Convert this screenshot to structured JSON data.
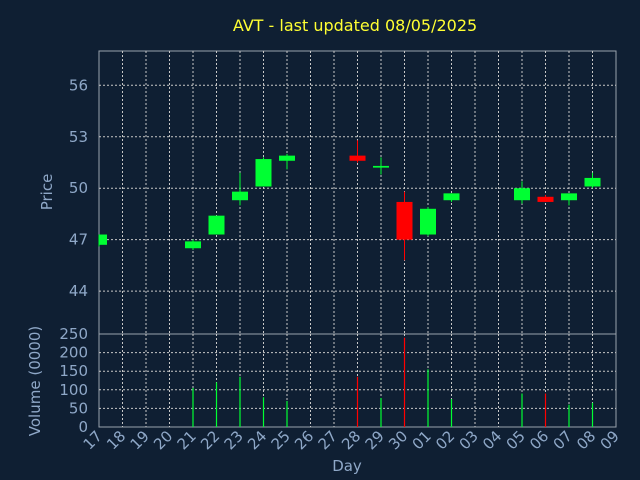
{
  "chart_data": [
    {
      "type": "candlestick",
      "title": "AVT - last updated 08/05/2025",
      "ylabel": "Price",
      "ylim": [
        41.5,
        58
      ],
      "yticks": [
        44,
        47,
        50,
        53,
        56
      ],
      "colors": {
        "up": "#00ff33",
        "down": "#ff0000",
        "grid": "#c8c8c8",
        "frame": "#9aa3ad"
      },
      "candles": [
        {
          "x": 0,
          "open": 46.7,
          "high": 47.3,
          "low": 46.6,
          "close": 47.3
        },
        {
          "x": 4,
          "open": 46.5,
          "high": 47.0,
          "low": 46.4,
          "close": 46.9
        },
        {
          "x": 5,
          "open": 47.3,
          "high": 48.4,
          "low": 47.3,
          "close": 48.4
        },
        {
          "x": 6,
          "open": 49.3,
          "high": 50.9,
          "low": 49.0,
          "close": 49.8
        },
        {
          "x": 7,
          "open": 50.1,
          "high": 51.8,
          "low": 50.1,
          "close": 51.7
        },
        {
          "x": 8,
          "open": 51.6,
          "high": 52.0,
          "low": 51.1,
          "close": 51.9
        },
        {
          "x": 11,
          "open": 51.9,
          "high": 52.8,
          "low": 51.5,
          "close": 51.6
        },
        {
          "x": 12,
          "open": 51.2,
          "high": 51.8,
          "low": 50.8,
          "close": 51.3
        },
        {
          "x": 13,
          "open": 49.2,
          "high": 49.8,
          "low": 45.8,
          "close": 47.0
        },
        {
          "x": 14,
          "open": 47.3,
          "high": 48.9,
          "low": 47.2,
          "close": 48.8
        },
        {
          "x": 15,
          "open": 49.3,
          "high": 49.7,
          "low": 49.2,
          "close": 49.7
        },
        {
          "x": 18,
          "open": 49.3,
          "high": 50.4,
          "low": 49.1,
          "close": 50.0
        },
        {
          "x": 19,
          "open": 49.5,
          "high": 49.6,
          "low": 49.2,
          "close": 49.2
        },
        {
          "x": 20,
          "open": 49.3,
          "high": 49.7,
          "low": 49.0,
          "close": 49.7
        },
        {
          "x": 21,
          "open": 50.1,
          "high": 50.9,
          "low": 50.0,
          "close": 50.6
        }
      ]
    },
    {
      "type": "bar",
      "ylabel": "Volume (0000)",
      "xlabel": "Day",
      "ylim": [
        0,
        250
      ],
      "yticks": [
        0,
        50,
        100,
        150,
        200,
        250
      ],
      "categories": [
        "17",
        "18",
        "19",
        "20",
        "21",
        "22",
        "23",
        "24",
        "25",
        "26",
        "27",
        "28",
        "29",
        "30",
        "01",
        "02",
        "03",
        "04",
        "05",
        "06",
        "07",
        "08",
        "09"
      ],
      "volumes": [
        {
          "x": 4,
          "value": 105,
          "dir": "up"
        },
        {
          "x": 5,
          "value": 120,
          "dir": "up"
        },
        {
          "x": 6,
          "value": 135,
          "dir": "up"
        },
        {
          "x": 7,
          "value": 80,
          "dir": "up"
        },
        {
          "x": 8,
          "value": 70,
          "dir": "up"
        },
        {
          "x": 11,
          "value": 135,
          "dir": "down"
        },
        {
          "x": 12,
          "value": 78,
          "dir": "up"
        },
        {
          "x": 13,
          "value": 240,
          "dir": "down"
        },
        {
          "x": 14,
          "value": 155,
          "dir": "up"
        },
        {
          "x": 15,
          "value": 75,
          "dir": "up"
        },
        {
          "x": 18,
          "value": 90,
          "dir": "up"
        },
        {
          "x": 19,
          "value": 90,
          "dir": "down"
        },
        {
          "x": 20,
          "value": 60,
          "dir": "up"
        },
        {
          "x": 21,
          "value": 65,
          "dir": "up"
        }
      ]
    }
  ]
}
